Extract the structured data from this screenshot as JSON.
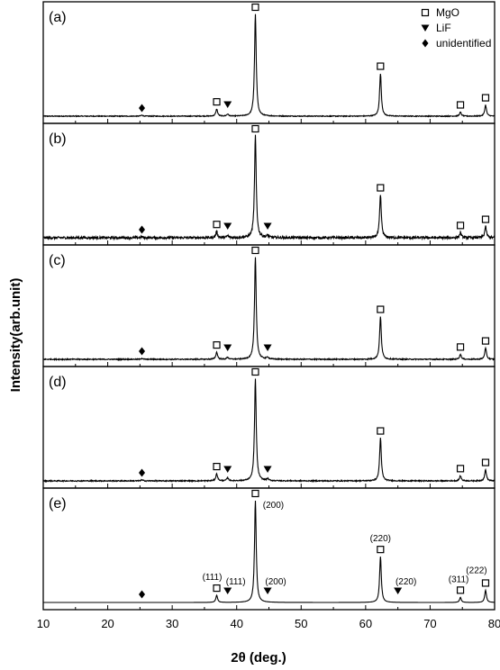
{
  "chart_data": {
    "type": "line",
    "xlabel": "2θ (deg.)",
    "ylabel": "Intensity(arb.unit)",
    "xlim": [
      10,
      80
    ],
    "x_ticks": [
      "10",
      "20",
      "30",
      "40",
      "50",
      "60",
      "70",
      "80"
    ],
    "legend": {
      "placement": "top-right",
      "entries": [
        {
          "symbol": "square",
          "label": "MgO"
        },
        {
          "symbol": "triangle-down",
          "label": "LiF"
        },
        {
          "symbol": "diamond",
          "label": "unidentified"
        }
      ]
    },
    "panels": [
      {
        "label": "(a)",
        "noise": 0.004,
        "peaks": [
          {
            "x": 25.3,
            "h": 0.01,
            "phase": "unidentified"
          },
          {
            "x": 36.9,
            "h": 0.07,
            "phase": "MgO"
          },
          {
            "x": 38.6,
            "h": 0.02,
            "phase": "LiF"
          },
          {
            "x": 42.9,
            "h": 1.0,
            "phase": "MgO"
          },
          {
            "x": 62.3,
            "h": 0.42,
            "phase": "MgO"
          },
          {
            "x": 74.7,
            "h": 0.04,
            "phase": "MgO"
          },
          {
            "x": 78.6,
            "h": 0.11,
            "phase": "MgO"
          }
        ]
      },
      {
        "label": "(b)",
        "noise": 0.012,
        "peaks": [
          {
            "x": 25.3,
            "h": 0.01,
            "phase": "unidentified"
          },
          {
            "x": 36.9,
            "h": 0.06,
            "phase": "MgO"
          },
          {
            "x": 38.6,
            "h": 0.02,
            "phase": "LiF"
          },
          {
            "x": 42.9,
            "h": 1.0,
            "phase": "MgO"
          },
          {
            "x": 44.8,
            "h": 0.02,
            "phase": "LiF"
          },
          {
            "x": 62.3,
            "h": 0.42,
            "phase": "MgO"
          },
          {
            "x": 74.7,
            "h": 0.05,
            "phase": "MgO"
          },
          {
            "x": 78.6,
            "h": 0.11,
            "phase": "MgO"
          }
        ]
      },
      {
        "label": "(c)",
        "noise": 0.005,
        "peaks": [
          {
            "x": 25.3,
            "h": 0.01,
            "phase": "unidentified"
          },
          {
            "x": 36.9,
            "h": 0.07,
            "phase": "MgO"
          },
          {
            "x": 38.6,
            "h": 0.02,
            "phase": "LiF"
          },
          {
            "x": 42.9,
            "h": 1.0,
            "phase": "MgO"
          },
          {
            "x": 44.8,
            "h": 0.02,
            "phase": "LiF"
          },
          {
            "x": 62.3,
            "h": 0.42,
            "phase": "MgO"
          },
          {
            "x": 74.7,
            "h": 0.05,
            "phase": "MgO"
          },
          {
            "x": 78.6,
            "h": 0.11,
            "phase": "MgO"
          }
        ]
      },
      {
        "label": "(d)",
        "noise": 0.005,
        "peaks": [
          {
            "x": 25.3,
            "h": 0.01,
            "phase": "unidentified"
          },
          {
            "x": 36.9,
            "h": 0.07,
            "phase": "MgO"
          },
          {
            "x": 38.6,
            "h": 0.03,
            "phase": "LiF"
          },
          {
            "x": 42.9,
            "h": 1.0,
            "phase": "MgO"
          },
          {
            "x": 44.8,
            "h": 0.02,
            "phase": "LiF"
          },
          {
            "x": 62.3,
            "h": 0.42,
            "phase": "MgO"
          },
          {
            "x": 74.7,
            "h": 0.05,
            "phase": "MgO"
          },
          {
            "x": 78.6,
            "h": 0.11,
            "phase": "MgO"
          }
        ]
      },
      {
        "label": "(e)",
        "noise": 0.0,
        "peaks": [
          {
            "x": 25.3,
            "h": 0.0,
            "phase": "unidentified"
          },
          {
            "x": 36.9,
            "h": 0.07,
            "phase": "MgO",
            "hkl": "(111)"
          },
          {
            "x": 38.6,
            "h": 0.0,
            "phase": "LiF",
            "hkl": "(111)"
          },
          {
            "x": 42.9,
            "h": 1.0,
            "phase": "MgO",
            "hkl": "(200)"
          },
          {
            "x": 44.8,
            "h": 0.0,
            "phase": "LiF",
            "hkl": "(200)"
          },
          {
            "x": 62.3,
            "h": 0.45,
            "phase": "MgO",
            "hkl": "(220)"
          },
          {
            "x": 65.0,
            "h": 0.0,
            "phase": "LiF",
            "hkl": "(220)"
          },
          {
            "x": 74.7,
            "h": 0.05,
            "phase": "MgO",
            "hkl": "(311)"
          },
          {
            "x": 78.6,
            "h": 0.12,
            "phase": "MgO",
            "hkl": "(222)"
          }
        ]
      }
    ]
  }
}
